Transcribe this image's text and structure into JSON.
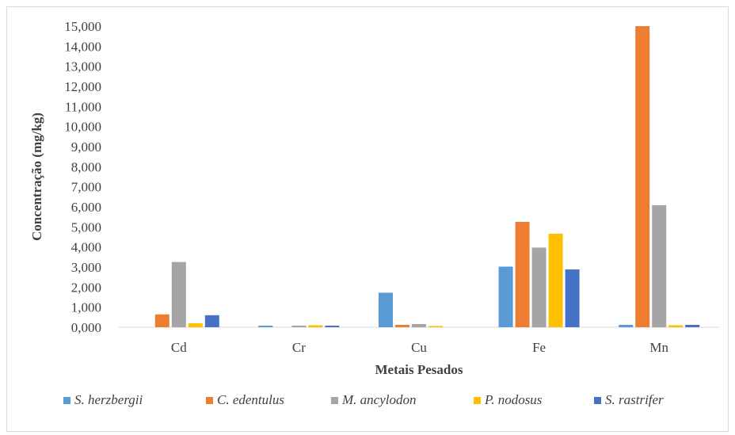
{
  "chart_data": {
    "type": "bar",
    "title": "",
    "xlabel": "Metais Pesados",
    "ylabel": "Concentração (mg/kg)",
    "ylim": [
      0,
      15
    ],
    "yticks": [
      {
        "value": 0,
        "label": "0,000"
      },
      {
        "value": 1,
        "label": "1,000"
      },
      {
        "value": 2,
        "label": "2,000"
      },
      {
        "value": 3,
        "label": "3,000"
      },
      {
        "value": 4,
        "label": "4,000"
      },
      {
        "value": 5,
        "label": "5,000"
      },
      {
        "value": 6,
        "label": "6,000"
      },
      {
        "value": 7,
        "label": "7,000"
      },
      {
        "value": 8,
        "label": "8,000"
      },
      {
        "value": 9,
        "label": "9,000"
      },
      {
        "value": 10,
        "label": "10,000"
      },
      {
        "value": 11,
        "label": "11,000"
      },
      {
        "value": 12,
        "label": "12,000"
      },
      {
        "value": 13,
        "label": "13,000"
      },
      {
        "value": 14,
        "label": "14,000"
      },
      {
        "value": 15,
        "label": "15,000"
      }
    ],
    "grid": false,
    "legend_position": "bottom",
    "categories": [
      "Cd",
      "Cr",
      "Cu",
      "Fe",
      "Mn"
    ],
    "series": [
      {
        "name": "S. herzbergii",
        "color": "#5b9bd5",
        "values": [
          0.0,
          0.08,
          1.72,
          3.02,
          0.12
        ]
      },
      {
        "name": "C. edentulus",
        "color": "#ed7d31",
        "values": [
          0.64,
          0.0,
          0.12,
          5.25,
          15.0
        ]
      },
      {
        "name": "M. ancylodon",
        "color": "#a5a5a5",
        "values": [
          3.25,
          0.08,
          0.16,
          3.97,
          6.08
        ]
      },
      {
        "name": "P. nodosus",
        "color": "#ffc000",
        "values": [
          0.2,
          0.1,
          0.06,
          4.66,
          0.1
        ]
      },
      {
        "name": "S. rastrifer",
        "color": "#4472c4",
        "values": [
          0.6,
          0.08,
          0.0,
          2.88,
          0.12
        ]
      }
    ]
  }
}
